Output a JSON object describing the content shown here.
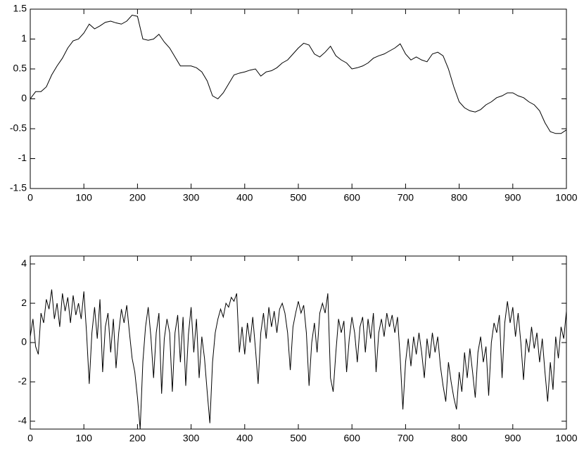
{
  "chart_data": [
    {
      "type": "line",
      "color": "#000000",
      "x": [
        0,
        10,
        20,
        30,
        40,
        50,
        60,
        70,
        80,
        90,
        100,
        110,
        120,
        130,
        140,
        150,
        160,
        170,
        180,
        190,
        200,
        210,
        220,
        230,
        240,
        250,
        260,
        270,
        280,
        290,
        300,
        310,
        320,
        330,
        340,
        350,
        360,
        370,
        380,
        390,
        400,
        410,
        420,
        430,
        440,
        450,
        460,
        470,
        480,
        490,
        500,
        510,
        520,
        530,
        540,
        550,
        560,
        570,
        580,
        590,
        600,
        610,
        620,
        630,
        640,
        650,
        660,
        670,
        680,
        690,
        700,
        710,
        720,
        730,
        740,
        750,
        760,
        770,
        780,
        790,
        800,
        810,
        820,
        830,
        840,
        850,
        860,
        870,
        880,
        890,
        900,
        910,
        920,
        930,
        940,
        950,
        960,
        970,
        980,
        990,
        1000
      ],
      "values": [
        0,
        0.12,
        0.12,
        0.2,
        0.4,
        0.55,
        0.68,
        0.85,
        0.97,
        1.0,
        1.1,
        1.25,
        1.17,
        1.22,
        1.28,
        1.3,
        1.27,
        1.25,
        1.3,
        1.4,
        1.38,
        1.0,
        0.98,
        1.0,
        1.08,
        0.95,
        0.85,
        0.7,
        0.55,
        0.55,
        0.55,
        0.52,
        0.45,
        0.3,
        0.05,
        0.0,
        0.1,
        0.25,
        0.4,
        0.43,
        0.45,
        0.48,
        0.5,
        0.38,
        0.45,
        0.47,
        0.52,
        0.6,
        0.65,
        0.75,
        0.85,
        0.93,
        0.9,
        0.75,
        0.7,
        0.78,
        0.88,
        0.72,
        0.65,
        0.6,
        0.5,
        0.52,
        0.55,
        0.6,
        0.68,
        0.72,
        0.75,
        0.8,
        0.85,
        0.92,
        0.75,
        0.65,
        0.7,
        0.65,
        0.62,
        0.75,
        0.78,
        0.72,
        0.5,
        0.2,
        -0.05,
        -0.15,
        -0.2,
        -0.22,
        -0.18,
        -0.1,
        -0.05,
        0.02,
        0.05,
        0.1,
        0.1,
        0.05,
        0.02,
        -0.05,
        -0.1,
        -0.2,
        -0.4,
        -0.55,
        -0.58,
        -0.58,
        -0.52
      ],
      "xlim": [
        0,
        1000
      ],
      "xticks": [
        0,
        100,
        200,
        300,
        400,
        500,
        600,
        700,
        800,
        900,
        1000
      ],
      "ylim": [
        -1.5,
        1.5
      ],
      "yticks": [
        -1.5,
        -1,
        -0.5,
        0,
        0.5,
        1,
        1.5
      ]
    },
    {
      "type": "line",
      "color": "#000000",
      "x": [
        0,
        5,
        10,
        15,
        20,
        25,
        30,
        35,
        40,
        45,
        50,
        55,
        60,
        65,
        70,
        75,
        80,
        85,
        90,
        95,
        100,
        105,
        110,
        115,
        120,
        125,
        130,
        135,
        140,
        145,
        150,
        155,
        160,
        165,
        170,
        175,
        180,
        185,
        190,
        195,
        200,
        205,
        210,
        215,
        220,
        225,
        230,
        235,
        240,
        245,
        250,
        255,
        260,
        265,
        270,
        275,
        280,
        285,
        290,
        295,
        300,
        305,
        310,
        315,
        320,
        325,
        330,
        335,
        340,
        345,
        350,
        355,
        360,
        365,
        370,
        375,
        380,
        385,
        390,
        395,
        400,
        405,
        410,
        415,
        420,
        425,
        430,
        435,
        440,
        445,
        450,
        455,
        460,
        465,
        470,
        475,
        480,
        485,
        490,
        495,
        500,
        505,
        510,
        515,
        520,
        525,
        530,
        535,
        540,
        545,
        550,
        555,
        560,
        565,
        570,
        575,
        580,
        585,
        590,
        595,
        600,
        605,
        610,
        615,
        620,
        625,
        630,
        635,
        640,
        645,
        650,
        655,
        660,
        665,
        670,
        675,
        680,
        685,
        690,
        695,
        700,
        705,
        710,
        715,
        720,
        725,
        730,
        735,
        740,
        745,
        750,
        755,
        760,
        765,
        770,
        775,
        780,
        785,
        790,
        795,
        800,
        805,
        810,
        815,
        820,
        825,
        830,
        835,
        840,
        845,
        850,
        855,
        860,
        865,
        870,
        875,
        880,
        885,
        890,
        895,
        900,
        905,
        910,
        915,
        920,
        925,
        930,
        935,
        940,
        945,
        950,
        955,
        960,
        965,
        970,
        975,
        980,
        985,
        990,
        995,
        1000
      ],
      "values": [
        0.3,
        1.2,
        -0.2,
        -0.6,
        1.5,
        1.0,
        2.2,
        1.7,
        2.7,
        1.2,
        2.0,
        0.8,
        2.5,
        1.6,
        2.3,
        1.0,
        2.4,
        1.4,
        2.0,
        1.2,
        2.6,
        0.5,
        -2.1,
        0.5,
        1.8,
        0.2,
        2.2,
        -1.5,
        0.8,
        1.5,
        -0.5,
        1.2,
        -1.3,
        0.5,
        1.7,
        1.0,
        1.9,
        0.5,
        -0.8,
        -1.5,
        -2.8,
        -4.4,
        -1.0,
        0.8,
        1.8,
        0.3,
        -1.8,
        0.5,
        1.5,
        -2.6,
        0.2,
        1.2,
        0.5,
        -2.5,
        0.5,
        1.4,
        -1.0,
        1.3,
        -2.2,
        0.4,
        1.8,
        -0.5,
        1.2,
        -1.8,
        0.3,
        -0.8,
        -2.5,
        -4.1,
        -1.0,
        0.5,
        1.2,
        1.7,
        1.3,
        2.0,
        1.8,
        2.3,
        2.1,
        2.5,
        -0.5,
        0.8,
        -0.6,
        1.0,
        0.0,
        1.3,
        -0.3,
        -2.1,
        0.5,
        1.5,
        0.2,
        1.8,
        0.8,
        1.6,
        0.5,
        1.7,
        2.0,
        1.5,
        0.5,
        -1.4,
        0.8,
        1.5,
        2.1,
        1.5,
        1.9,
        0.5,
        -2.2,
        0.0,
        1.0,
        -0.5,
        1.5,
        2.0,
        1.5,
        2.5,
        -1.8,
        -2.5,
        -0.5,
        1.2,
        0.5,
        1.1,
        -1.5,
        0.2,
        1.3,
        0.5,
        -1.0,
        0.8,
        1.3,
        -0.5,
        1.2,
        0.2,
        1.5,
        -1.5,
        0.5,
        1.2,
        0.3,
        1.5,
        0.8,
        1.4,
        0.5,
        1.3,
        -0.8,
        -3.4,
        -1.0,
        0.2,
        -1.2,
        0.3,
        -0.6,
        0.5,
        -0.5,
        -1.8,
        0.2,
        -0.8,
        0.5,
        -0.5,
        0.3,
        -1.2,
        -2.2,
        -3.0,
        -1.0,
        -2.0,
        -2.8,
        -3.4,
        -1.5,
        -2.5,
        -0.5,
        -1.8,
        -0.3,
        -1.5,
        -2.8,
        -0.5,
        0.3,
        -1.0,
        -0.2,
        -2.7,
        0.0,
        1.0,
        0.5,
        1.4,
        -1.8,
        1.0,
        2.1,
        1.0,
        1.8,
        0.3,
        1.5,
        0.0,
        -1.9,
        0.2,
        -0.5,
        0.8,
        -0.3,
        0.5,
        -1.0,
        0.2,
        -1.5,
        -3.0,
        -1.0,
        -2.4,
        0.3,
        -0.8,
        0.8,
        0.2,
        1.6
      ],
      "xlim": [
        0,
        1000
      ],
      "xticks": [
        0,
        100,
        200,
        300,
        400,
        500,
        600,
        700,
        800,
        900,
        1000
      ],
      "ylim": [
        -4.4,
        4.4
      ],
      "yticks": [
        -4,
        -2,
        0,
        2,
        4
      ]
    }
  ]
}
